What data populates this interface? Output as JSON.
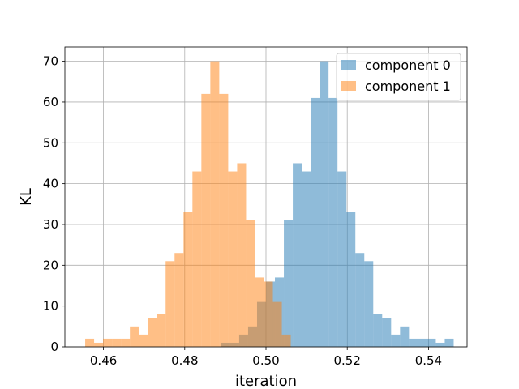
{
  "chart_data": {
    "type": "bar",
    "subtype": "overlapping-histogram",
    "xlabel": "iteration",
    "ylabel": "KL",
    "xlim": [
      0.4505,
      0.5495
    ],
    "ylim": [
      0,
      73.5
    ],
    "x_ticks": [
      "0.46",
      "0.48",
      "0.50",
      "0.52",
      "0.54"
    ],
    "x_tick_values": [
      0.46,
      0.48,
      0.5,
      0.52,
      0.54
    ],
    "y_ticks": [
      "0",
      "10",
      "20",
      "30",
      "40",
      "50",
      "60",
      "70"
    ],
    "y_tick_values": [
      0,
      10,
      20,
      30,
      40,
      50,
      60,
      70
    ],
    "grid": true,
    "legend": {
      "placement": "top-right"
    },
    "series": [
      {
        "name": "component 0",
        "color": "#1f77b4",
        "alpha": 0.5,
        "bin_start": 0.489,
        "bin_width": 0.0022,
        "values": [
          1,
          1,
          3,
          5,
          11,
          16,
          17,
          31,
          45,
          43,
          61,
          70,
          61,
          43,
          33,
          23,
          21,
          8,
          7,
          3,
          5,
          2,
          2,
          2,
          1,
          2
        ]
      },
      {
        "name": "component 1",
        "color": "#ff7f0e",
        "alpha": 0.5,
        "bin_start": 0.4555,
        "bin_width": 0.0022,
        "values": [
          2,
          1,
          2,
          2,
          2,
          5,
          3,
          7,
          8,
          21,
          23,
          33,
          43,
          62,
          70,
          62,
          43,
          45,
          31,
          17,
          16,
          11,
          3
        ]
      }
    ]
  }
}
